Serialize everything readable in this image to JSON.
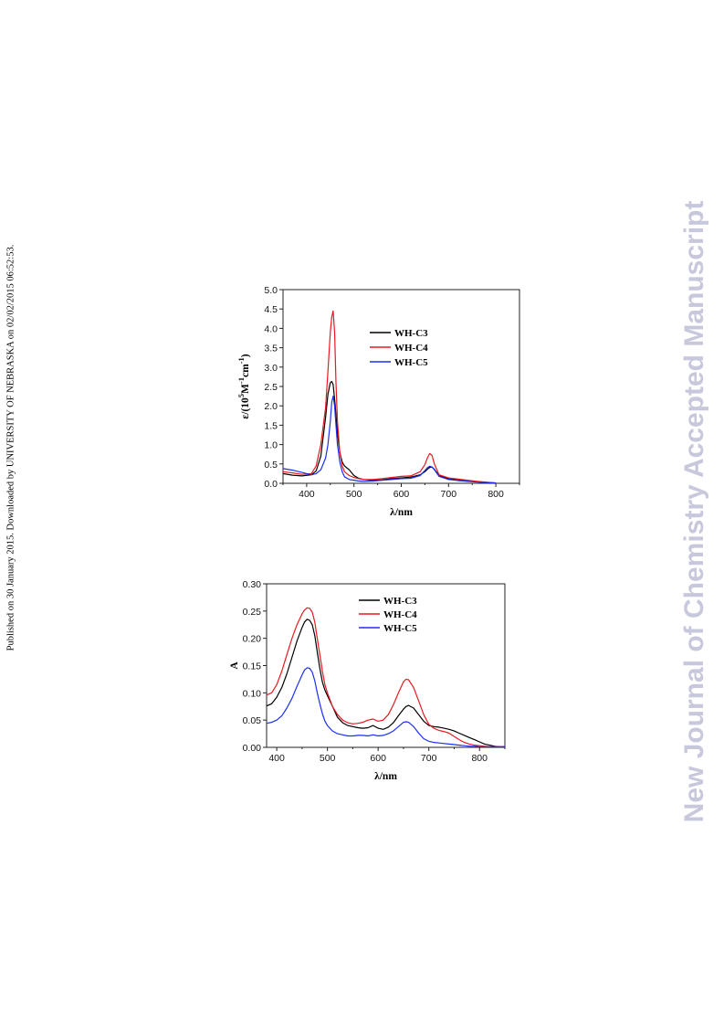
{
  "page": {
    "side_note": "Published on 30 January 2015. Downloaded by UNIVERSITY OF NEBRASKA on 02/02/2015 06:52:53.",
    "watermark": "New Journal of Chemistry Accepted Manuscript"
  },
  "colors": {
    "WH-C3": "#000000",
    "WH-C4": "#e8191f",
    "WH-C5": "#1a2ff0"
  },
  "chart_data": [
    {
      "type": "line",
      "title": "",
      "xlabel": "λ/nm",
      "ylabel_parts": [
        "ε/(10",
        "5",
        "M",
        "-1",
        "cm",
        "-1",
        ")"
      ],
      "xlim": [
        350,
        850
      ],
      "ylim": [
        0.0,
        5.0
      ],
      "xticks": [
        400,
        500,
        600,
        700,
        800
      ],
      "yticks": [
        0.0,
        0.5,
        1.0,
        1.5,
        2.0,
        2.5,
        3.0,
        3.5,
        4.0,
        4.5,
        5.0
      ],
      "ytick_decimals": 1,
      "grid": false,
      "legend_position": "top-right",
      "series": [
        {
          "name": "WH-C3",
          "color": "#000000",
          "x": [
            350,
            370,
            390,
            410,
            420,
            430,
            440,
            445,
            450,
            453,
            456,
            460,
            465,
            470,
            475,
            480,
            490,
            500,
            510,
            520,
            540,
            560,
            580,
            600,
            620,
            640,
            650,
            655,
            660,
            665,
            670,
            680,
            700,
            720,
            740,
            760,
            780,
            800
          ],
          "y": [
            0.25,
            0.21,
            0.19,
            0.22,
            0.32,
            0.7,
            1.7,
            2.3,
            2.6,
            2.63,
            2.55,
            2.05,
            1.3,
            0.8,
            0.55,
            0.45,
            0.35,
            0.2,
            0.13,
            0.1,
            0.08,
            0.09,
            0.12,
            0.14,
            0.16,
            0.22,
            0.3,
            0.36,
            0.41,
            0.42,
            0.36,
            0.2,
            0.12,
            0.1,
            0.07,
            0.04,
            0.02,
            0.01
          ]
        },
        {
          "name": "WH-C4",
          "color": "#e8191f",
          "x": [
            350,
            370,
            390,
            410,
            420,
            430,
            440,
            445,
            450,
            453,
            456,
            459,
            462,
            465,
            470,
            475,
            480,
            490,
            500,
            510,
            520,
            540,
            560,
            580,
            600,
            620,
            640,
            650,
            655,
            660,
            665,
            670,
            680,
            700,
            720,
            740,
            760,
            780,
            800
          ],
          "y": [
            0.3,
            0.27,
            0.23,
            0.25,
            0.45,
            1.0,
            1.95,
            2.9,
            3.9,
            4.3,
            4.45,
            3.9,
            2.6,
            1.6,
            0.8,
            0.45,
            0.3,
            0.2,
            0.15,
            0.12,
            0.1,
            0.1,
            0.12,
            0.15,
            0.18,
            0.19,
            0.3,
            0.48,
            0.65,
            0.77,
            0.72,
            0.5,
            0.22,
            0.14,
            0.11,
            0.08,
            0.05,
            0.03,
            0.01
          ]
        },
        {
          "name": "WH-C5",
          "color": "#1a2ff0",
          "x": [
            350,
            370,
            390,
            410,
            420,
            430,
            440,
            445,
            450,
            453,
            456,
            459,
            462,
            465,
            470,
            475,
            480,
            490,
            500,
            510,
            520,
            540,
            560,
            580,
            600,
            620,
            640,
            650,
            655,
            660,
            665,
            670,
            680,
            700,
            720,
            740,
            760,
            780,
            800
          ],
          "y": [
            0.38,
            0.34,
            0.28,
            0.22,
            0.25,
            0.35,
            0.65,
            1.0,
            1.6,
            2.1,
            2.25,
            2.0,
            1.5,
            1.0,
            0.55,
            0.3,
            0.17,
            0.1,
            0.08,
            0.06,
            0.05,
            0.06,
            0.08,
            0.1,
            0.12,
            0.13,
            0.2,
            0.33,
            0.4,
            0.44,
            0.42,
            0.35,
            0.18,
            0.1,
            0.07,
            0.05,
            0.03,
            0.02,
            0.01
          ]
        }
      ]
    },
    {
      "type": "line",
      "title": "",
      "xlabel": "λ/nm",
      "ylabel": "A",
      "xlim": [
        380,
        850
      ],
      "ylim": [
        0.0,
        0.3
      ],
      "xticks": [
        400,
        500,
        600,
        700,
        800
      ],
      "yticks": [
        0.0,
        0.05,
        0.1,
        0.15,
        0.2,
        0.25,
        0.3
      ],
      "ytick_decimals": 2,
      "grid": false,
      "legend_position": "top-right",
      "series": [
        {
          "name": "WH-C3",
          "color": "#000000",
          "x": [
            380,
            390,
            400,
            410,
            420,
            430,
            440,
            450,
            455,
            460,
            465,
            470,
            475,
            480,
            485,
            490,
            495,
            500,
            510,
            520,
            530,
            540,
            550,
            560,
            570,
            580,
            590,
            600,
            610,
            620,
            630,
            640,
            650,
            655,
            660,
            670,
            680,
            690,
            700,
            710,
            720,
            730,
            740,
            750,
            760,
            770,
            780,
            790,
            800,
            810,
            820,
            830,
            840,
            850
          ],
          "y": [
            0.076,
            0.08,
            0.092,
            0.11,
            0.135,
            0.165,
            0.195,
            0.22,
            0.23,
            0.235,
            0.233,
            0.225,
            0.205,
            0.175,
            0.145,
            0.12,
            0.105,
            0.095,
            0.075,
            0.055,
            0.045,
            0.04,
            0.038,
            0.036,
            0.035,
            0.036,
            0.04,
            0.035,
            0.033,
            0.037,
            0.045,
            0.058,
            0.07,
            0.075,
            0.077,
            0.072,
            0.06,
            0.048,
            0.04,
            0.038,
            0.037,
            0.035,
            0.033,
            0.03,
            0.026,
            0.022,
            0.018,
            0.014,
            0.01,
            0.006,
            0.004,
            0.002,
            0.001,
            0.001
          ]
        },
        {
          "name": "WH-C4",
          "color": "#e8191f",
          "x": [
            380,
            390,
            400,
            410,
            420,
            430,
            440,
            450,
            455,
            460,
            465,
            470,
            475,
            480,
            485,
            490,
            495,
            500,
            510,
            520,
            530,
            540,
            550,
            560,
            570,
            580,
            590,
            600,
            610,
            620,
            630,
            640,
            650,
            655,
            660,
            670,
            680,
            690,
            700,
            710,
            720,
            730,
            740,
            750,
            760,
            770,
            780,
            790,
            800,
            810,
            820,
            830,
            840,
            850
          ],
          "y": [
            0.096,
            0.1,
            0.115,
            0.14,
            0.17,
            0.2,
            0.225,
            0.245,
            0.252,
            0.256,
            0.255,
            0.248,
            0.23,
            0.2,
            0.17,
            0.14,
            0.115,
            0.1,
            0.075,
            0.06,
            0.05,
            0.045,
            0.043,
            0.044,
            0.046,
            0.05,
            0.052,
            0.048,
            0.05,
            0.06,
            0.078,
            0.1,
            0.12,
            0.125,
            0.124,
            0.11,
            0.085,
            0.06,
            0.042,
            0.035,
            0.031,
            0.029,
            0.026,
            0.02,
            0.014,
            0.009,
            0.006,
            0.004,
            0.003,
            0.002,
            0.001,
            0.001,
            0.001,
            0.001
          ]
        },
        {
          "name": "WH-C5",
          "color": "#1a2ff0",
          "x": [
            380,
            390,
            400,
            410,
            420,
            430,
            440,
            450,
            455,
            460,
            465,
            470,
            475,
            480,
            485,
            490,
            495,
            500,
            510,
            520,
            530,
            540,
            550,
            560,
            570,
            580,
            590,
            600,
            610,
            620,
            630,
            640,
            650,
            655,
            660,
            670,
            680,
            690,
            700,
            710,
            720,
            730,
            740,
            750,
            760,
            770,
            780,
            790,
            800,
            810,
            820,
            830,
            840,
            850
          ],
          "y": [
            0.044,
            0.046,
            0.05,
            0.058,
            0.072,
            0.09,
            0.112,
            0.133,
            0.142,
            0.146,
            0.145,
            0.138,
            0.122,
            0.1,
            0.08,
            0.062,
            0.048,
            0.04,
            0.03,
            0.025,
            0.023,
            0.021,
            0.021,
            0.022,
            0.022,
            0.021,
            0.023,
            0.021,
            0.022,
            0.025,
            0.03,
            0.038,
            0.046,
            0.047,
            0.046,
            0.038,
            0.026,
            0.016,
            0.011,
            0.009,
            0.008,
            0.007,
            0.006,
            0.005,
            0.004,
            0.003,
            0.002,
            0.002,
            0.001,
            0.001,
            0.001,
            0.001,
            0.001,
            0.001
          ]
        }
      ]
    }
  ]
}
